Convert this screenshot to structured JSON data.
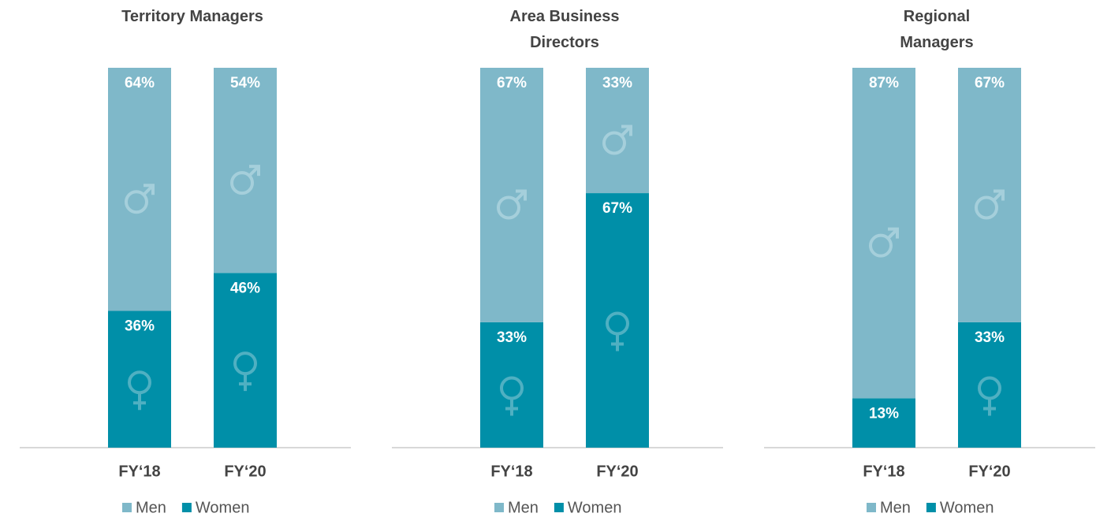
{
  "chart_data": [
    {
      "type": "bar",
      "stacked": true,
      "title": "Territory Managers",
      "categories": [
        "FY‘18",
        "FY‘20"
      ],
      "ylim": [
        0,
        100
      ],
      "series": [
        {
          "name": "Men",
          "color": "#7fb8c9",
          "values": [
            64,
            54
          ],
          "value_labels": [
            "64%",
            "54%"
          ]
        },
        {
          "name": "Women",
          "color": "#008fa8",
          "values": [
            36,
            46
          ],
          "value_labels": [
            "36%",
            "46%"
          ]
        }
      ]
    },
    {
      "type": "bar",
      "stacked": true,
      "title": "Area Business Directors",
      "categories": [
        "FY‘18",
        "FY‘20"
      ],
      "ylim": [
        0,
        100
      ],
      "series": [
        {
          "name": "Men",
          "color": "#7fb8c9",
          "values": [
            67,
            33
          ],
          "value_labels": [
            "67%",
            "33%"
          ]
        },
        {
          "name": "Women",
          "color": "#008fa8",
          "values": [
            33,
            67
          ],
          "value_labels": [
            "33%",
            "67%"
          ]
        }
      ]
    },
    {
      "type": "bar",
      "stacked": true,
      "title": "Regional Managers",
      "categories": [
        "FY‘18",
        "FY‘20"
      ],
      "ylim": [
        0,
        100
      ],
      "series": [
        {
          "name": "Men",
          "color": "#7fb8c9",
          "values": [
            87,
            67
          ],
          "value_labels": [
            "87%",
            "67%"
          ]
        },
        {
          "name": "Women",
          "color": "#008fa8",
          "values": [
            13,
            33
          ],
          "value_labels": [
            "13%",
            "33%"
          ]
        }
      ]
    }
  ]
}
